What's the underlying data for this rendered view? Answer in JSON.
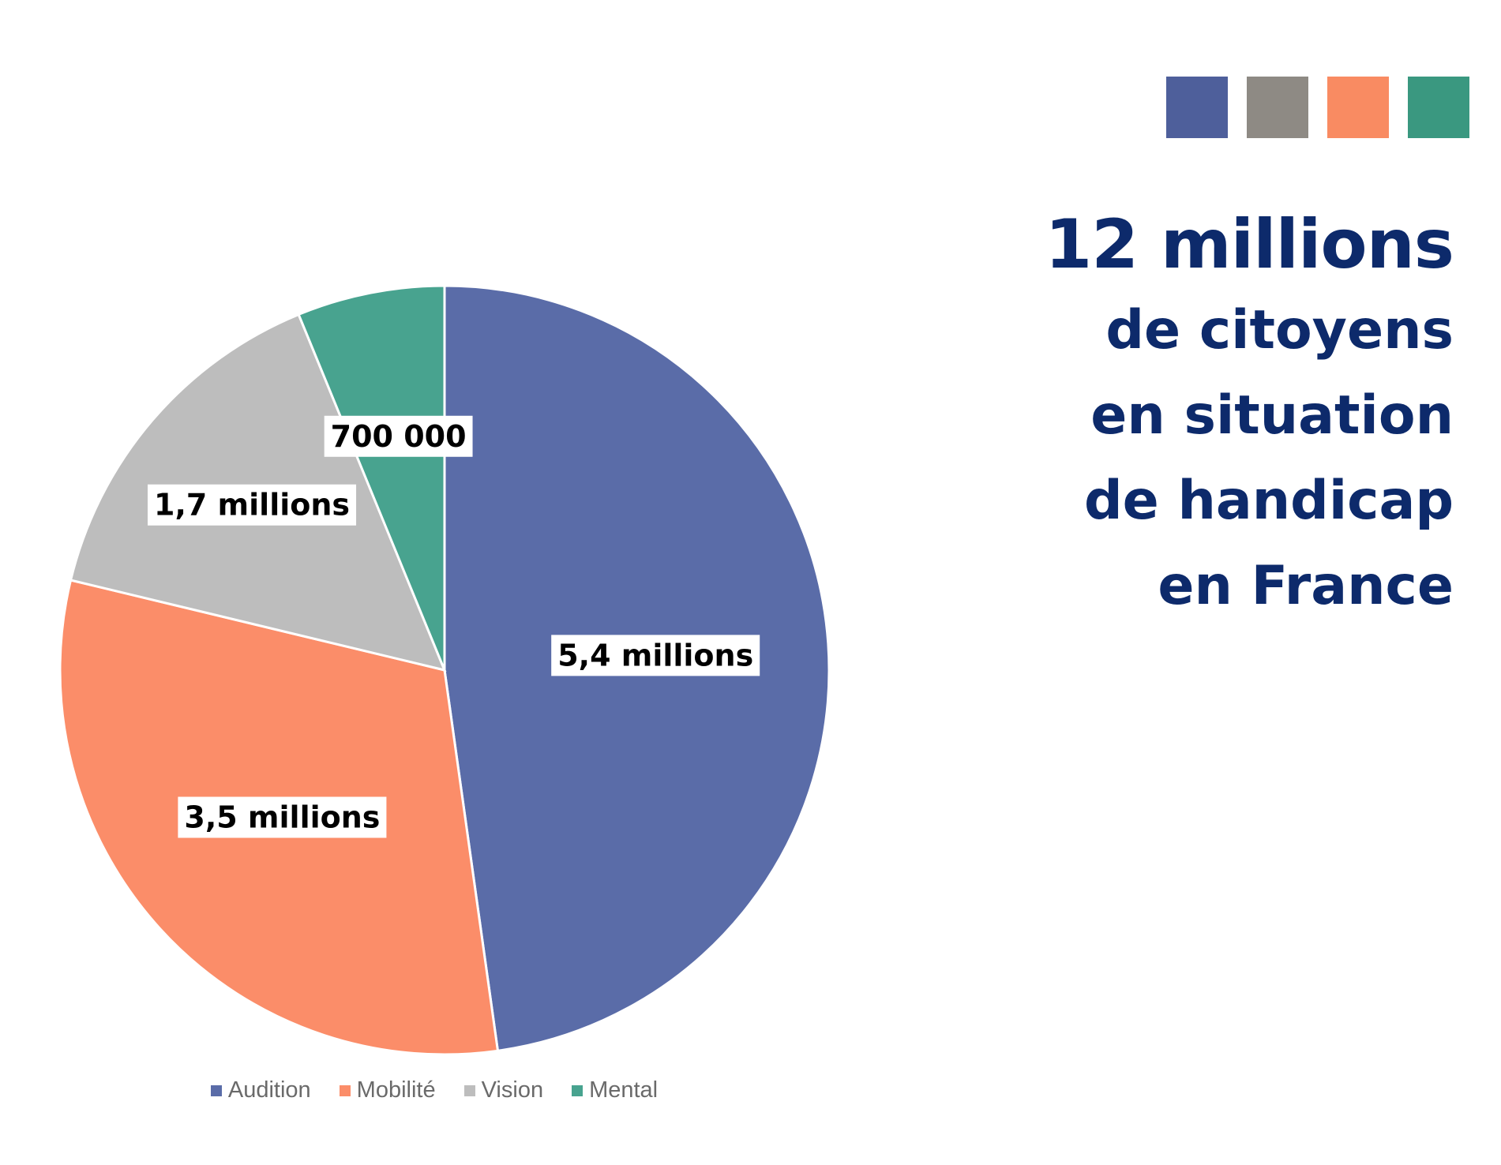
{
  "palette": [
    "#4e5f9b",
    "#8e8a84",
    "#f98b62",
    "#3a9880"
  ],
  "headline": {
    "big": "12 millions",
    "lines": [
      "de citoyens",
      "en situation",
      "de handicap",
      "en France"
    ]
  },
  "chart_data": {
    "type": "pie",
    "title": "",
    "start_angle_deg": 0,
    "direction": "clockwise",
    "legend_position": "bottom",
    "slices": [
      {
        "name": "Audition",
        "value": 5.4,
        "label": "5,4 millions",
        "color": "#5a6ca8"
      },
      {
        "name": "Mobilité",
        "value": 3.5,
        "label": "3,5 millions",
        "color": "#fb8d69"
      },
      {
        "name": "Vision",
        "value": 1.7,
        "label": "1,7 millions",
        "color": "#bdbdbd"
      },
      {
        "name": "Mental",
        "value": 0.7,
        "label": "700 000",
        "color": "#48a38f"
      }
    ]
  }
}
